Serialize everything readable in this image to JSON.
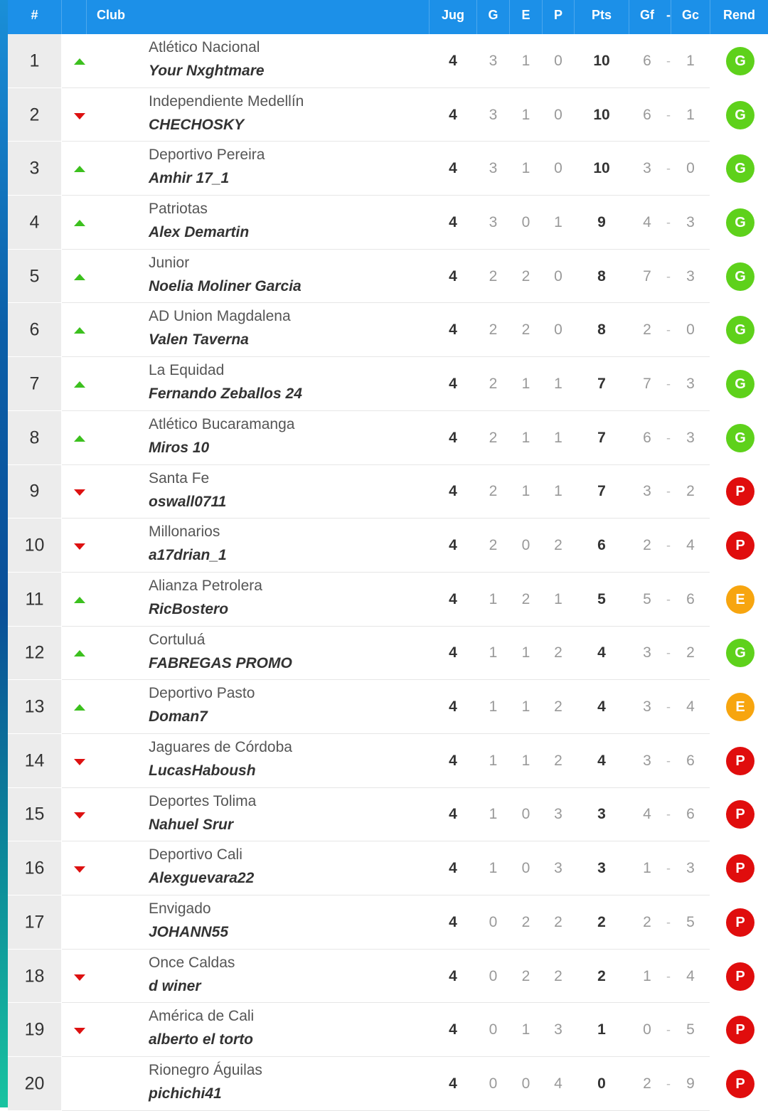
{
  "header": {
    "rank": "#",
    "club": "Club",
    "played": "Jug",
    "won": "G",
    "drawn": "E",
    "lost": "P",
    "points": "Pts",
    "goals_for": "Gf",
    "goals_sep": "-",
    "goals_against": "Gc",
    "form": "Rend"
  },
  "colors": {
    "header": "#1c90e8",
    "up": "#3cc01e",
    "down": "#dd1111",
    "form_G": "#5ed11b",
    "form_E": "#f7a50f",
    "form_P": "#e00d0d"
  },
  "rows": [
    {
      "pos": "1",
      "trend": "up",
      "club": "Atlético Nacional",
      "player": "Your Nxghtmare",
      "jug": "4",
      "g": "3",
      "e": "1",
      "p": "0",
      "pts": "10",
      "gf": "6",
      "sep": "-",
      "gc": "1",
      "rend": "G"
    },
    {
      "pos": "2",
      "trend": "down",
      "club": "Independiente Medellín",
      "player": "CHECHOSKY",
      "jug": "4",
      "g": "3",
      "e": "1",
      "p": "0",
      "pts": "10",
      "gf": "6",
      "sep": "-",
      "gc": "1",
      "rend": "G"
    },
    {
      "pos": "3",
      "trend": "up",
      "club": "Deportivo Pereira",
      "player": "Amhir 17_1",
      "jug": "4",
      "g": "3",
      "e": "1",
      "p": "0",
      "pts": "10",
      "gf": "3",
      "sep": "-",
      "gc": "0",
      "rend": "G"
    },
    {
      "pos": "4",
      "trend": "up",
      "club": "Patriotas",
      "player": "Alex Demartin",
      "jug": "4",
      "g": "3",
      "e": "0",
      "p": "1",
      "pts": "9",
      "gf": "4",
      "sep": "-",
      "gc": "3",
      "rend": "G"
    },
    {
      "pos": "5",
      "trend": "up",
      "club": "Junior",
      "player": "Noelia Moliner Garcia",
      "jug": "4",
      "g": "2",
      "e": "2",
      "p": "0",
      "pts": "8",
      "gf": "7",
      "sep": "-",
      "gc": "3",
      "rend": "G"
    },
    {
      "pos": "6",
      "trend": "up",
      "club": "AD Union Magdalena",
      "player": "Valen Taverna",
      "jug": "4",
      "g": "2",
      "e": "2",
      "p": "0",
      "pts": "8",
      "gf": "2",
      "sep": "-",
      "gc": "0",
      "rend": "G"
    },
    {
      "pos": "7",
      "trend": "up",
      "club": "La Equidad",
      "player": "Fernando Zeballos 24",
      "jug": "4",
      "g": "2",
      "e": "1",
      "p": "1",
      "pts": "7",
      "gf": "7",
      "sep": "-",
      "gc": "3",
      "rend": "G"
    },
    {
      "pos": "8",
      "trend": "up",
      "club": "Atlético Bucaramanga",
      "player": "Miros 10",
      "jug": "4",
      "g": "2",
      "e": "1",
      "p": "1",
      "pts": "7",
      "gf": "6",
      "sep": "-",
      "gc": "3",
      "rend": "G"
    },
    {
      "pos": "9",
      "trend": "down",
      "club": "Santa Fe",
      "player": "oswall0711",
      "jug": "4",
      "g": "2",
      "e": "1",
      "p": "1",
      "pts": "7",
      "gf": "3",
      "sep": "-",
      "gc": "2",
      "rend": "P"
    },
    {
      "pos": "10",
      "trend": "down",
      "club": "Millonarios",
      "player": "a17drian_1",
      "jug": "4",
      "g": "2",
      "e": "0",
      "p": "2",
      "pts": "6",
      "gf": "2",
      "sep": "-",
      "gc": "4",
      "rend": "P"
    },
    {
      "pos": "11",
      "trend": "up",
      "club": "Alianza Petrolera",
      "player": "RicBostero",
      "jug": "4",
      "g": "1",
      "e": "2",
      "p": "1",
      "pts": "5",
      "gf": "5",
      "sep": "-",
      "gc": "6",
      "rend": "E"
    },
    {
      "pos": "12",
      "trend": "up",
      "club": "Cortuluá",
      "player": "FABREGAS PROMO",
      "jug": "4",
      "g": "1",
      "e": "1",
      "p": "2",
      "pts": "4",
      "gf": "3",
      "sep": "-",
      "gc": "2",
      "rend": "G"
    },
    {
      "pos": "13",
      "trend": "up",
      "club": "Deportivo Pasto",
      "player": "Doman7",
      "jug": "4",
      "g": "1",
      "e": "1",
      "p": "2",
      "pts": "4",
      "gf": "3",
      "sep": "-",
      "gc": "4",
      "rend": "E"
    },
    {
      "pos": "14",
      "trend": "down",
      "club": "Jaguares de Córdoba",
      "player": "LucasHaboush",
      "jug": "4",
      "g": "1",
      "e": "1",
      "p": "2",
      "pts": "4",
      "gf": "3",
      "sep": "-",
      "gc": "6",
      "rend": "P"
    },
    {
      "pos": "15",
      "trend": "down",
      "club": "Deportes Tolima",
      "player": "Nahuel Srur",
      "jug": "4",
      "g": "1",
      "e": "0",
      "p": "3",
      "pts": "3",
      "gf": "4",
      "sep": "-",
      "gc": "6",
      "rend": "P"
    },
    {
      "pos": "16",
      "trend": "down",
      "club": "Deportivo Cali",
      "player": "Alexguevara22",
      "jug": "4",
      "g": "1",
      "e": "0",
      "p": "3",
      "pts": "3",
      "gf": "1",
      "sep": "-",
      "gc": "3",
      "rend": "P"
    },
    {
      "pos": "17",
      "trend": "none",
      "club": "Envigado",
      "player": "JOHANN55",
      "jug": "4",
      "g": "0",
      "e": "2",
      "p": "2",
      "pts": "2",
      "gf": "2",
      "sep": "-",
      "gc": "5",
      "rend": "P"
    },
    {
      "pos": "18",
      "trend": "down",
      "club": "Once Caldas",
      "player": "d winer",
      "jug": "4",
      "g": "0",
      "e": "2",
      "p": "2",
      "pts": "2",
      "gf": "1",
      "sep": "-",
      "gc": "4",
      "rend": "P"
    },
    {
      "pos": "19",
      "trend": "down",
      "club": "América de Cali",
      "player": "alberto el torto",
      "jug": "4",
      "g": "0",
      "e": "1",
      "p": "3",
      "pts": "1",
      "gf": "0",
      "sep": "-",
      "gc": "5",
      "rend": "P"
    },
    {
      "pos": "20",
      "trend": "none",
      "club": "Rionegro Águilas",
      "player": "pichichi41",
      "jug": "4",
      "g": "0",
      "e": "0",
      "p": "4",
      "pts": "0",
      "gf": "2",
      "sep": "-",
      "gc": "9",
      "rend": "P"
    }
  ]
}
